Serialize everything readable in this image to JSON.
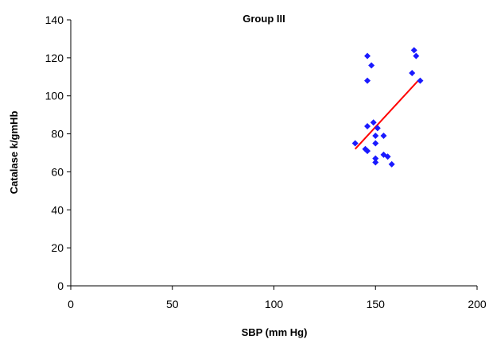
{
  "chart_data": {
    "type": "scatter",
    "title": "Group III",
    "xlabel": "SBP (mm Hg)",
    "ylabel": "Catalase k/gmHb",
    "xlim": [
      0,
      200
    ],
    "ylim": [
      0,
      140
    ],
    "x_ticks": [
      0,
      50,
      100,
      150,
      200
    ],
    "y_ticks": [
      0,
      20,
      40,
      60,
      80,
      100,
      120,
      140
    ],
    "grid": false,
    "marker_color": "#1a1aff",
    "trendline_color": "#ff0000",
    "points": [
      {
        "x": 140,
        "y": 75
      },
      {
        "x": 145,
        "y": 72
      },
      {
        "x": 146,
        "y": 71
      },
      {
        "x": 146,
        "y": 84
      },
      {
        "x": 146,
        "y": 108
      },
      {
        "x": 146,
        "y": 121
      },
      {
        "x": 148,
        "y": 116
      },
      {
        "x": 149,
        "y": 86
      },
      {
        "x": 150,
        "y": 79
      },
      {
        "x": 150,
        "y": 75
      },
      {
        "x": 150,
        "y": 67
      },
      {
        "x": 150,
        "y": 65
      },
      {
        "x": 151,
        "y": 83
      },
      {
        "x": 154,
        "y": 79
      },
      {
        "x": 154,
        "y": 69
      },
      {
        "x": 156,
        "y": 68
      },
      {
        "x": 158,
        "y": 64
      },
      {
        "x": 168,
        "y": 112
      },
      {
        "x": 169,
        "y": 124
      },
      {
        "x": 170,
        "y": 121
      },
      {
        "x": 172,
        "y": 108
      }
    ],
    "trendline": {
      "x": [
        140,
        171
      ],
      "y": [
        72,
        108
      ]
    }
  }
}
